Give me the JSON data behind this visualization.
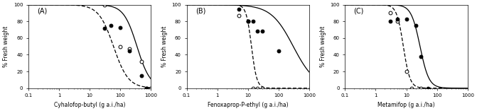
{
  "panels": [
    {
      "label": "(A)",
      "xlabel": "Cyhalofop-butyl (g a.i./ha)",
      "xlim": [
        0.1,
        1000
      ],
      "xticks": [
        0.1,
        1,
        10,
        100,
        1000
      ],
      "suwon_x": [
        30,
        100,
        200,
        500,
        700,
        1000
      ],
      "suwon_y": [
        100,
        50,
        47,
        32,
        0,
        0
      ],
      "seosan_x": [
        30,
        50,
        100,
        200,
        500,
        700
      ],
      "seosan_y": [
        72,
        75,
        73,
        45,
        15,
        0
      ],
      "curve_suwon_ec50": 60,
      "curve_suwon_slope": 1.8,
      "curve_seosan_ec50": 350,
      "curve_seosan_slope": 2.0
    },
    {
      "label": "(B)",
      "xlabel": "Fenoxaprop-P-ethyl (g a.i./ha)",
      "xlim": [
        0.1,
        1000
      ],
      "xticks": [
        0.1,
        1,
        10,
        100,
        1000
      ],
      "suwon_x": [
        5,
        10,
        15,
        20,
        30
      ],
      "suwon_y": [
        87,
        80,
        0,
        0,
        0
      ],
      "seosan_x": [
        5,
        10,
        15,
        20,
        30,
        100
      ],
      "seosan_y": [
        95,
        80,
        80,
        68,
        68,
        45
      ],
      "curve_suwon_ec50": 13,
      "curve_suwon_slope": 5.0,
      "curve_seosan_ec50": 300,
      "curve_seosan_slope": 1.2
    },
    {
      "label": "(C)",
      "xlabel": "Metamifop (g a.i./ha)",
      "xlim": [
        0.1,
        1000
      ],
      "xticks": [
        0.1,
        1,
        10,
        100,
        1000
      ],
      "suwon_x": [
        3,
        5,
        10,
        15,
        30
      ],
      "suwon_y": [
        90,
        80,
        20,
        0,
        0
      ],
      "seosan_x": [
        3,
        5,
        10,
        20,
        30,
        50
      ],
      "seosan_y": [
        80,
        83,
        83,
        75,
        38,
        0
      ],
      "curve_suwon_ec50": 8,
      "curve_suwon_slope": 4.0,
      "curve_seosan_ec50": 28,
      "curve_seosan_slope": 3.0
    }
  ],
  "ylabel": "% Fresh weight",
  "ylim": [
    0,
    100
  ],
  "yticks": [
    0,
    20,
    40,
    60,
    80,
    100
  ],
  "bg_color": "#ffffff"
}
